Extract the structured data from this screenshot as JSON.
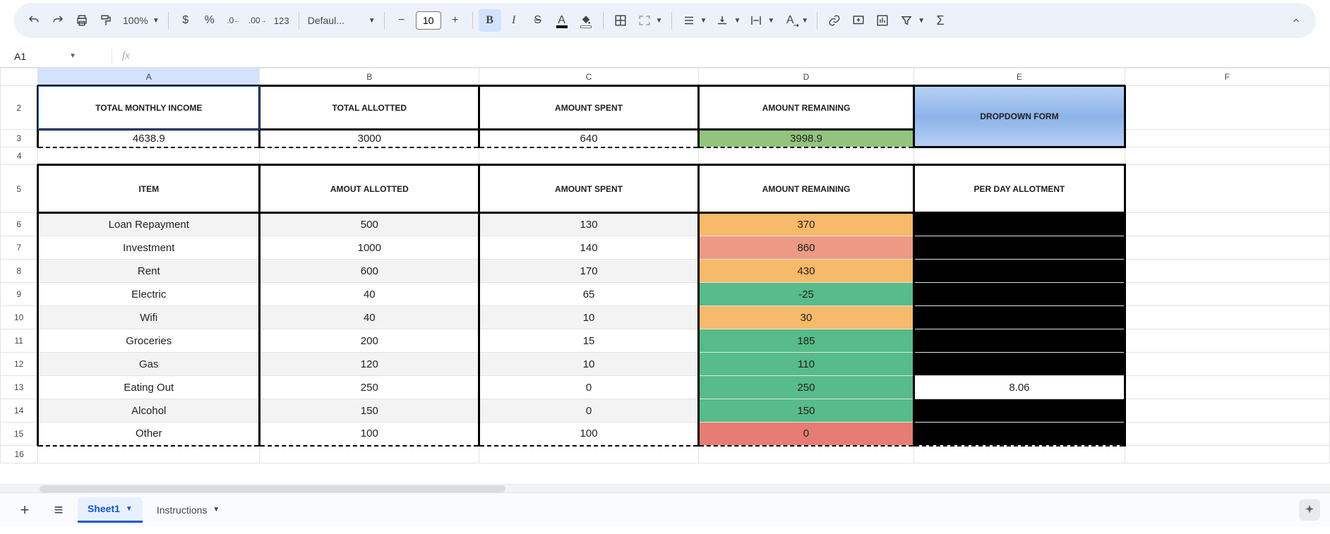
{
  "toolbar": {
    "zoom": "100%",
    "currency": "$",
    "percent": "%",
    "dec_dec": ".0",
    "dec_inc": ".00",
    "fmt123": "123",
    "font": "Defaul...",
    "minus": "−",
    "fontsize": "10",
    "plus": "+",
    "sigma": "Σ"
  },
  "namebox": {
    "cell": "A1",
    "fx": "fx"
  },
  "columns": [
    "A",
    "B",
    "C",
    "D",
    "E",
    "F"
  ],
  "rows": [
    "2",
    "3",
    "4",
    "5",
    "6",
    "7",
    "8",
    "9",
    "10",
    "11",
    "12",
    "13",
    "14",
    "15",
    "16"
  ],
  "summary": {
    "headers": [
      "TOTAL MONTHLY INCOME",
      "TOTAL ALLOTTED",
      "AMOUNT SPENT",
      "AMOUNT REMAINING"
    ],
    "values": [
      "4638.9",
      "3000",
      "640",
      "3998.9"
    ],
    "dropdown_label": "DROPDOWN FORM",
    "remaining_color": "#93c47d"
  },
  "budget": {
    "headers": [
      "ITEM",
      "AMOUT ALLOTTED",
      "AMOUNT SPENT",
      "AMOUNT REMAINING",
      "PER DAY ALLOTMENT"
    ],
    "rows": [
      {
        "item": "Loan Repayment",
        "allotted": "500",
        "spent": "130",
        "remaining": "370",
        "perday": "",
        "rc": "#f7b96a",
        "alt": true
      },
      {
        "item": "Investment",
        "allotted": "1000",
        "spent": "140",
        "remaining": "860",
        "perday": "",
        "rc": "#ed9a84",
        "alt": false
      },
      {
        "item": "Rent",
        "allotted": "600",
        "spent": "170",
        "remaining": "430",
        "perday": "",
        "rc": "#f7b96a",
        "alt": true
      },
      {
        "item": "Electric",
        "allotted": "40",
        "spent": "65",
        "remaining": "-25",
        "perday": "",
        "rc": "#57bb8a",
        "alt": false
      },
      {
        "item": "Wifi",
        "allotted": "40",
        "spent": "10",
        "remaining": "30",
        "perday": "",
        "rc": "#f7b96a",
        "alt": true
      },
      {
        "item": "Groceries",
        "allotted": "200",
        "spent": "15",
        "remaining": "185",
        "perday": "",
        "rc": "#57bb8a",
        "alt": false
      },
      {
        "item": "Gas",
        "allotted": "120",
        "spent": "10",
        "remaining": "110",
        "perday": "",
        "rc": "#57bb8a",
        "alt": true
      },
      {
        "item": "Eating Out",
        "allotted": "250",
        "spent": "0",
        "remaining": "250",
        "perday": "8.06",
        "rc": "#57bb8a",
        "alt": false,
        "perday_white": true
      },
      {
        "item": "Alcohol",
        "allotted": "150",
        "spent": "0",
        "remaining": "150",
        "perday": "",
        "rc": "#57bb8a",
        "alt": true
      },
      {
        "item": "Other",
        "allotted": "100",
        "spent": "100",
        "remaining": "0",
        "perday": "",
        "rc": "#e67c73",
        "alt": false
      }
    ]
  },
  "tabs": {
    "sheet1": "Sheet1",
    "instructions": "Instructions"
  }
}
